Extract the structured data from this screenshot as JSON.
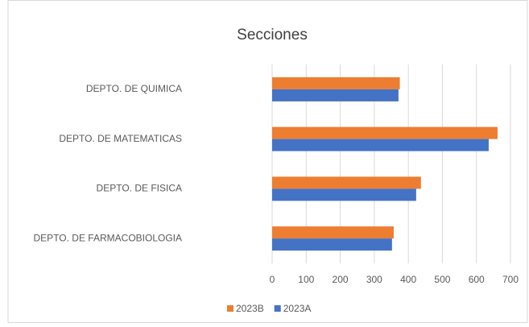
{
  "chart_data": {
    "type": "bar",
    "orientation": "horizontal",
    "title": "Secciones",
    "categories": [
      "DEPTO. DE QUIMICA",
      "DEPTO. DE MATEMATICAS",
      "DEPTO. DE FISICA",
      "DEPTO. DE FARMACOBIOLOGIA"
    ],
    "series": [
      {
        "name": "2023B",
        "color": "#ed7d31",
        "values": [
          375,
          662,
          437,
          357
        ]
      },
      {
        "name": "2023A",
        "color": "#4472c4",
        "values": [
          371,
          636,
          423,
          352
        ]
      }
    ],
    "xlim": [
      0,
      700
    ],
    "xticks": [
      0,
      100,
      200,
      300,
      400,
      500,
      600,
      700
    ],
    "grid": true,
    "legend": "bottom"
  }
}
